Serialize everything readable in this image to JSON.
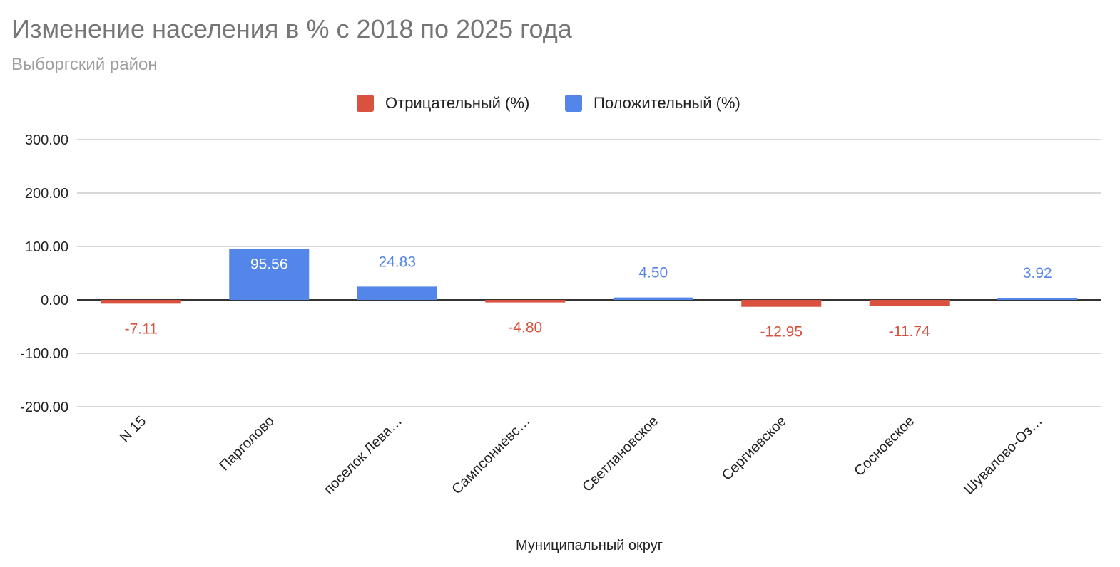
{
  "chart_data": {
    "type": "bar",
    "stacked": true,
    "title": "Изменение населения в % с 2018 по 2025 года",
    "subtitle": "Выборгский район",
    "xlabel": "Муниципальный округ",
    "ylabel": "",
    "ylim": [
      -200,
      300
    ],
    "yticks": [
      "300.00",
      "200.00",
      "100.00",
      "0.00",
      "-100.00",
      "-200.00"
    ],
    "ytick_values": [
      300,
      200,
      100,
      0,
      -100,
      -200
    ],
    "grid": true,
    "legend_position": "top",
    "categories": [
      "N 15",
      "Парголово",
      "поселок Лева…",
      "Сампсониевс…",
      "Светлановское",
      "Сергиевское",
      "Сосновское",
      "Шувалово-Оз…"
    ],
    "series": [
      {
        "name": "Отрицательный (%)",
        "color": "#d9513f",
        "values": [
          -7.11,
          null,
          null,
          -4.8,
          null,
          -12.95,
          -11.74,
          null
        ],
        "labels": [
          "-7.11",
          "",
          "",
          "-4.80",
          "",
          "-12.95",
          "-11.74",
          ""
        ]
      },
      {
        "name": "Положительный (%)",
        "color": "#5485e8",
        "values": [
          null,
          95.56,
          24.83,
          null,
          4.5,
          null,
          null,
          3.92
        ],
        "labels": [
          "",
          "95.56",
          "24.83",
          "",
          "4.50",
          "",
          "",
          "3.92"
        ]
      }
    ]
  }
}
